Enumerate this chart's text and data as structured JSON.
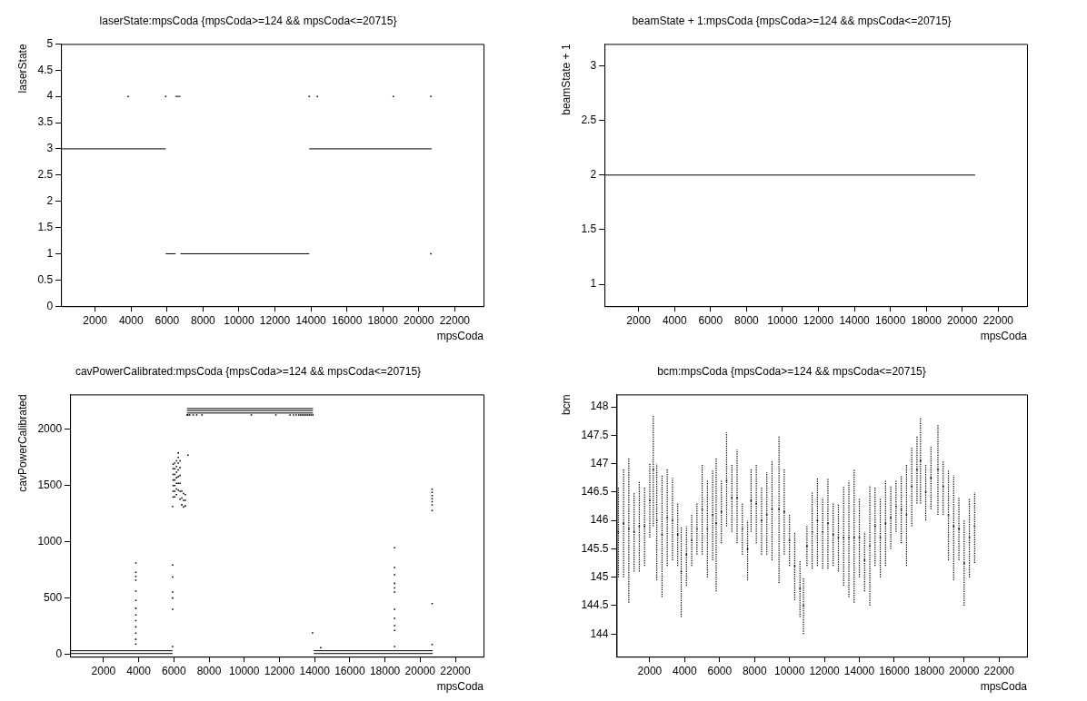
{
  "chart_data": [
    {
      "type": "scatter",
      "title": "laserState:mpsCoda {mpsCoda>=124 && mpsCoda<=20715}",
      "xlabel": "mpsCoda",
      "ylabel": "laserState",
      "xlim": [
        100,
        23600
      ],
      "xticks": [
        2000,
        4000,
        6000,
        8000,
        10000,
        12000,
        14000,
        16000,
        18000,
        20000,
        22000
      ],
      "ylim": [
        0,
        5
      ],
      "yticks": [
        0,
        0.5,
        1,
        1.5,
        2,
        2.5,
        3,
        3.5,
        4,
        4.5,
        5
      ],
      "grid": false,
      "legend": false,
      "marker": "square",
      "series": [
        {
          "type": "line",
          "marker": "none",
          "color": "#000000",
          "x": [
            124,
            5927
          ],
          "values": [
            3,
            3
          ]
        },
        {
          "type": "line",
          "marker": "none",
          "color": "#000000",
          "x": [
            5927,
            6473
          ],
          "values": [
            1,
            1
          ]
        },
        {
          "type": "line",
          "marker": "none",
          "color": "#000000",
          "x": [
            6745,
            13909
          ],
          "values": [
            1,
            1
          ]
        },
        {
          "type": "line",
          "marker": "none",
          "color": "#000000",
          "x": [
            13909,
            20715
          ],
          "values": [
            3,
            3
          ]
        },
        {
          "type": "line",
          "marker": "none",
          "color": "#000000",
          "x": [
            6455,
            6745
          ],
          "values": [
            4,
            4
          ]
        },
        {
          "type": "scatter",
          "color": "#000000",
          "x": [
            3836,
            5927,
            13909,
            14364,
            18582,
            20673,
            20673
          ],
          "values": [
            4,
            4,
            4,
            4,
            4,
            4,
            1
          ]
        }
      ]
    },
    {
      "type": "scatter",
      "title": "beamState + 1:mpsCoda {mpsCoda>=124 && mpsCoda<=20715}",
      "xlabel": "mpsCoda",
      "ylabel": "beamState + 1",
      "xlim": [
        100,
        23600
      ],
      "xticks": [
        2000,
        4000,
        6000,
        8000,
        10000,
        12000,
        14000,
        16000,
        18000,
        20000,
        22000
      ],
      "ylim": [
        0.8,
        3.2
      ],
      "yticks": [
        1,
        1.5,
        2,
        2.5,
        3
      ],
      "grid": false,
      "legend": false,
      "series": [
        {
          "type": "line",
          "marker": "none",
          "color": "#000000",
          "x": [
            124,
            20715
          ],
          "values": [
            2,
            2
          ]
        }
      ]
    },
    {
      "type": "scatter",
      "title": "cavPowerCalibrated:mpsCoda {mpsCoda>=124 && mpsCoda<=20715}",
      "xlabel": "mpsCoda",
      "ylabel": "cavPowerCalibrated",
      "xlim": [
        100,
        23600
      ],
      "xticks": [
        2000,
        4000,
        6000,
        8000,
        10000,
        12000,
        14000,
        16000,
        18000,
        20000,
        22000
      ],
      "ylim": [
        -20,
        2310
      ],
      "yticks": [
        0,
        500,
        1000,
        1500,
        2000
      ],
      "grid": false,
      "legend": false,
      "marker": "square",
      "series": [
        {
          "type": "line",
          "marker": "none",
          "color": "#000000",
          "x": [
            124,
            5927
          ],
          "values": [
            8,
            8
          ]
        },
        {
          "type": "line",
          "marker": "none",
          "color": "#000000",
          "x": [
            124,
            5927
          ],
          "values": [
            33,
            33
          ]
        },
        {
          "type": "line",
          "marker": "none",
          "color": "#000000",
          "x": [
            13950,
            20715
          ],
          "values": [
            8,
            8
          ]
        },
        {
          "type": "line",
          "marker": "none",
          "color": "#000000",
          "x": [
            13950,
            20715
          ],
          "values": [
            33,
            33
          ]
        },
        {
          "type": "line",
          "marker": "none",
          "color": "#000000",
          "x": [
            6745,
            13909
          ],
          "values": [
            2185,
            2185
          ]
        },
        {
          "type": "line",
          "marker": "none",
          "color": "#000000",
          "x": [
            6745,
            13909
          ],
          "values": [
            2167,
            2167
          ]
        },
        {
          "type": "line",
          "marker": "none",
          "color": "#000000",
          "x": [
            6745,
            13909
          ],
          "values": [
            2145,
            2145
          ]
        },
        {
          "type": "scatter",
          "color": "#000000",
          "x": [
            3836,
            3836,
            3836,
            3836,
            3836,
            3836,
            3836,
            3836,
            3836,
            3836,
            3836,
            3836,
            3836,
            5927,
            5927,
            5927,
            5927,
            5927,
            5927,
            5927,
            5960,
            5960,
            5960,
            5960,
            5960,
            5960,
            5960,
            6050,
            6050,
            6050,
            6050,
            6050,
            6050,
            6050,
            6150,
            6150,
            6150,
            6150,
            6150,
            6150,
            6150,
            6250,
            6250,
            6250,
            6250,
            6250,
            6250,
            6250,
            6350,
            6350,
            6350,
            6350,
            6350,
            6350,
            6450,
            6450,
            6450,
            6550,
            6550,
            6550,
            6650,
            6650,
            6650,
            6800,
            6750,
            6800,
            6900,
            7100,
            7300,
            7600,
            10400,
            11800,
            12600,
            12800,
            12950,
            13100,
            13200,
            13300,
            13400,
            13500,
            13600,
            13700,
            13800,
            13900,
            13880,
            14350,
            18545,
            18545,
            18545,
            18545,
            18545,
            18545,
            18545,
            18545,
            18545,
            18545,
            18545,
            20680,
            20680,
            20680,
            20680,
            20680,
            20680,
            20680,
            20680,
            20680
          ],
          "values": [
            813,
            730,
            694,
            660,
            563,
            480,
            410,
            350,
            300,
            245,
            190,
            134,
            92,
            794,
            688,
            554,
            501,
            401,
            70,
            1315,
            1400,
            1450,
            1500,
            1550,
            1600,
            1650,
            1690,
            1400,
            1450,
            1500,
            1550,
            1600,
            1650,
            1700,
            1420,
            1470,
            1520,
            1570,
            1620,
            1670,
            1720,
            1460,
            1520,
            1580,
            1640,
            1700,
            1750,
            1790,
            1380,
            1450,
            1520,
            1590,
            1660,
            1720,
            1330,
            1390,
            1450,
            1310,
            1370,
            1430,
            1320,
            1370,
            1420,
            1770,
            2128,
            2128,
            2128,
            2128,
            2128,
            2128,
            2128,
            2128,
            2128,
            2128,
            2128,
            2128,
            2128,
            2128,
            2128,
            2128,
            2128,
            2128,
            2128,
            2128,
            192,
            61,
            947,
            772,
            708,
            632,
            591,
            554,
            401,
            320,
            256,
            214,
            70,
            1468,
            1440,
            1412,
            1384,
            1357,
            1329,
            1279,
            451,
            89
          ]
        }
      ]
    },
    {
      "type": "scatter",
      "title": "bcm:mpsCoda {mpsCoda>=124 && mpsCoda<=20715}",
      "xlabel": "mpsCoda",
      "ylabel": "bcm",
      "xlim": [
        100,
        23600
      ],
      "xticks": [
        2000,
        4000,
        6000,
        8000,
        10000,
        12000,
        14000,
        16000,
        18000,
        20000,
        22000
      ],
      "ylim": [
        143.6,
        148.22
      ],
      "yticks": [
        144,
        144.5,
        145,
        145.5,
        146,
        146.5,
        147,
        147.5,
        148
      ],
      "grid": false,
      "legend": false,
      "marker": "square",
      "series": [
        {
          "type": "scatter",
          "color": "#000000",
          "x": [
            200,
            500,
            800,
            1100,
            1400,
            1700,
            2000,
            2200,
            2400,
            2700,
            3000,
            3300,
            3600,
            3800,
            4100,
            4400,
            4700,
            5000,
            5300,
            5600,
            5800,
            6100,
            6400,
            6700,
            7000,
            7300,
            7600,
            7800,
            8100,
            8400,
            8700,
            9000,
            9400,
            9700,
            10000,
            10300,
            10600,
            10800,
            11000,
            11300,
            11600,
            11900,
            12200,
            12500,
            12800,
            13100,
            13400,
            13700,
            14000,
            14300,
            14600,
            14900,
            15200,
            15500,
            15800,
            16100,
            16400,
            16700,
            17000,
            17300,
            17500,
            17800,
            18100,
            18500,
            18800,
            19100,
            19400,
            19700,
            20000,
            20300,
            20600
          ],
          "values": [
            145.8,
            145.95,
            145.85,
            145.8,
            145.9,
            145.9,
            146.35,
            146.9,
            146.0,
            145.75,
            146.05,
            146.0,
            145.75,
            145.1,
            145.4,
            145.65,
            145.85,
            146.2,
            145.85,
            146.1,
            145.95,
            146.15,
            146.7,
            146.4,
            146.4,
            145.85,
            145.5,
            146.35,
            146.3,
            146.0,
            146.1,
            146.2,
            146.2,
            146.15,
            145.65,
            145.2,
            144.8,
            144.5,
            145.55,
            145.8,
            146.0,
            145.8,
            145.95,
            145.75,
            145.7,
            145.7,
            145.7,
            145.7,
            145.7,
            145.3,
            145.55,
            145.9,
            145.7,
            145.95,
            146.05,
            146.25,
            146.2,
            146.1,
            146.6,
            146.9,
            147.05,
            146.5,
            146.75,
            146.9,
            146.6,
            146.1,
            145.9,
            145.85,
            145.25,
            145.7,
            145.9
          ],
          "errors": [
            [
              145.0,
              146.6
            ],
            [
              145.0,
              146.9
            ],
            [
              144.55,
              147.1
            ],
            [
              145.1,
              146.5
            ],
            [
              145.1,
              146.7
            ],
            [
              145.2,
              146.6
            ],
            [
              145.7,
              147.0
            ],
            [
              145.9,
              147.85
            ],
            [
              144.95,
              147.0
            ],
            [
              144.65,
              146.8
            ],
            [
              145.2,
              146.9
            ],
            [
              145.3,
              146.75
            ],
            [
              145.2,
              146.3
            ],
            [
              144.3,
              145.9
            ],
            [
              144.85,
              145.9
            ],
            [
              145.2,
              146.1
            ],
            [
              145.4,
              146.3
            ],
            [
              145.4,
              147.0
            ],
            [
              145.0,
              146.7
            ],
            [
              145.3,
              146.9
            ],
            [
              144.75,
              147.1
            ],
            [
              145.6,
              146.7
            ],
            [
              145.9,
              147.55
            ],
            [
              145.8,
              147.0
            ],
            [
              145.6,
              147.25
            ],
            [
              145.4,
              146.3
            ],
            [
              144.95,
              146.0
            ],
            [
              145.8,
              146.9
            ],
            [
              145.6,
              147.0
            ],
            [
              145.4,
              146.6
            ],
            [
              145.4,
              146.85
            ],
            [
              145.3,
              147.05
            ],
            [
              144.9,
              147.5
            ],
            [
              145.4,
              146.9
            ],
            [
              145.2,
              146.1
            ],
            [
              144.6,
              145.8
            ],
            [
              144.3,
              145.3
            ],
            [
              144.0,
              145.0
            ],
            [
              145.2,
              145.9
            ],
            [
              145.15,
              146.5
            ],
            [
              145.2,
              146.75
            ],
            [
              145.15,
              146.4
            ],
            [
              145.15,
              146.75
            ],
            [
              145.2,
              146.3
            ],
            [
              145.1,
              146.3
            ],
            [
              144.85,
              146.6
            ],
            [
              144.65,
              146.7
            ],
            [
              144.55,
              146.9
            ],
            [
              145.0,
              146.4
            ],
            [
              144.75,
              145.8
            ],
            [
              144.5,
              146.6
            ],
            [
              145.2,
              146.6
            ],
            [
              145.0,
              146.4
            ],
            [
              145.2,
              146.7
            ],
            [
              145.5,
              146.6
            ],
            [
              145.8,
              146.7
            ],
            [
              145.6,
              146.8
            ],
            [
              145.2,
              147.0
            ],
            [
              145.9,
              147.3
            ],
            [
              146.3,
              147.5
            ],
            [
              146.3,
              147.8
            ],
            [
              146.0,
              147.0
            ],
            [
              146.2,
              147.3
            ],
            [
              146.1,
              147.7
            ],
            [
              146.1,
              147.05
            ],
            [
              145.3,
              146.9
            ],
            [
              144.95,
              146.8
            ],
            [
              145.3,
              146.4
            ],
            [
              144.5,
              146.0
            ],
            [
              145.0,
              146.4
            ],
            [
              145.25,
              146.5
            ]
          ]
        }
      ]
    }
  ]
}
